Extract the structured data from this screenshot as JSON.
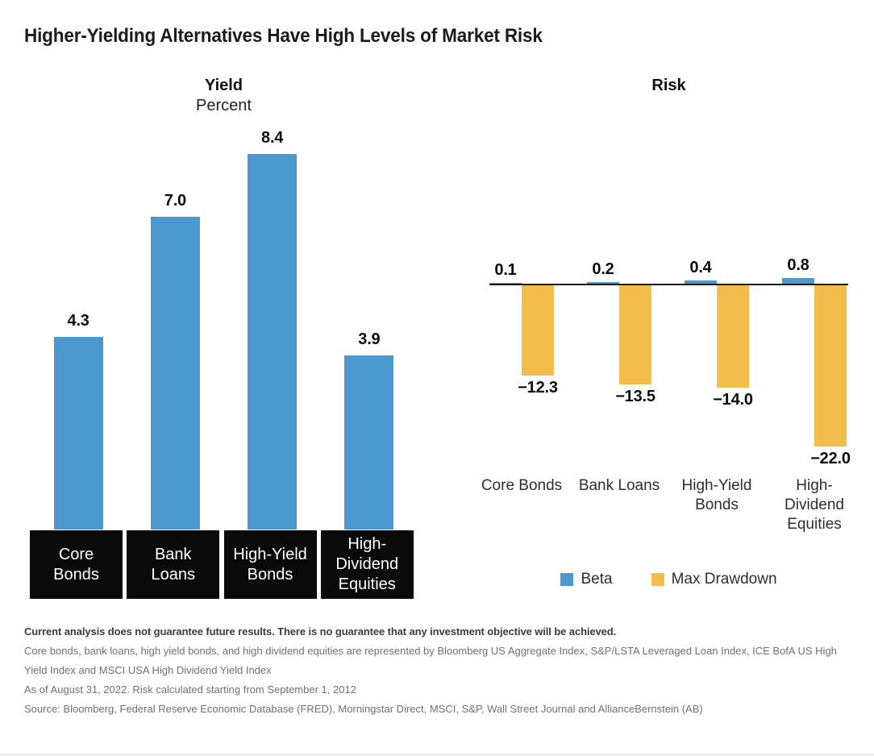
{
  "page": {
    "title": "Higher-Yielding Alternatives Have High Levels of Market Risk"
  },
  "colors": {
    "blue": "#4A98CE",
    "yellow": "#F2BD4B",
    "category_box_black": "#0a0a0a"
  },
  "chart_data": [
    {
      "type": "bar",
      "title": "Yield",
      "subtitle": "Percent",
      "categories": [
        "Core Bonds",
        "Bank Loans",
        "High-Yield Bonds",
        "High-Dividend Equities"
      ],
      "category_lines": [
        [
          "Core",
          "Bonds"
        ],
        [
          "Bank",
          "Loans"
        ],
        [
          "High-Yield",
          "Bonds"
        ],
        [
          "High-",
          "Dividend",
          "Equities"
        ]
      ],
      "values": [
        4.3,
        7.0,
        8.4,
        3.9
      ],
      "value_labels": [
        "4.3",
        "7.0",
        "8.4",
        "3.9"
      ],
      "bar_color": "#4A98CE",
      "ylim": [
        0,
        8.4
      ],
      "grid": false,
      "xlabel": "",
      "ylabel": "Percent"
    },
    {
      "type": "bar",
      "title": "Risk",
      "subtitle": "",
      "categories": [
        "Core Bonds",
        "Bank Loans",
        "High-Yield Bonds",
        "High-Dividend Equities"
      ],
      "category_lines": [
        [
          "Core Bonds"
        ],
        [
          "Bank Loans"
        ],
        [
          "High-Yield",
          "Bonds"
        ],
        [
          "High-",
          "Dividend",
          "Equities"
        ]
      ],
      "series": [
        {
          "name": "Beta",
          "color": "#4A98CE",
          "values": [
            0.1,
            0.2,
            0.4,
            0.8
          ],
          "labels": [
            "0.1",
            "0.2",
            "0.4",
            "0.8"
          ]
        },
        {
          "name": "Max Drawdown",
          "color": "#F2BD4B",
          "values": [
            -12.3,
            -13.5,
            -14.0,
            -22.0
          ],
          "labels": [
            "−12.3",
            "−13.5",
            "−14.0",
            "−22.0"
          ]
        }
      ],
      "baseline": 0,
      "ylim": [
        -22.0,
        0.8
      ],
      "grid": false,
      "legend_position": "bottom"
    }
  ],
  "legend": {
    "items": [
      {
        "label": "Beta",
        "color": "#4A98CE"
      },
      {
        "label": "Max Drawdown",
        "color": "#F2BD4B"
      }
    ]
  },
  "footer": {
    "disclaimer": "Current analysis does not guarantee future results. There is no guarantee that any investment objective will be achieved.",
    "indices_note": "Core bonds, bank loans, high yield bonds, and high dividend equities are represented by Bloomberg US Aggregate Index, S&P/LSTA Leveraged Loan Index, ICE BofA US High Yield Index and MSCI USA High Dividend Yield Index",
    "as_of_note": "As of August 31, 2022. Risk calculated starting from September 1, 2012",
    "source": "Source: Bloomberg, Federal Reserve Economic Database (FRED), Morningstar Direct, MSCI, S&P, Wall Street Journal and AllianceBernstein (AB)"
  }
}
